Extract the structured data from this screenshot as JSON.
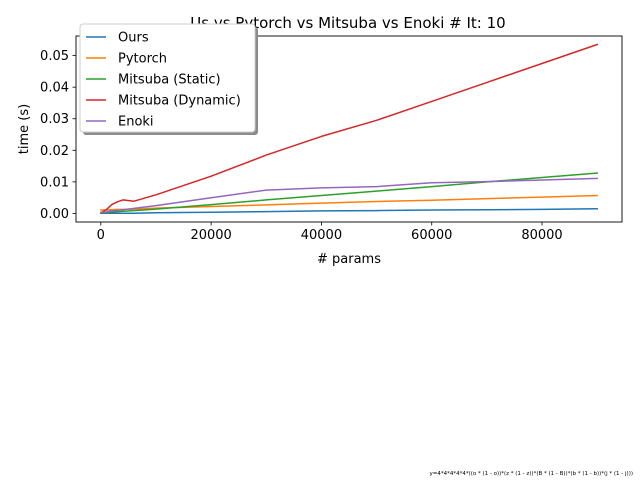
{
  "chart_data": {
    "type": "line",
    "title": "Us vs Pytorch vs Mitsuba vs Enoki # It: 10",
    "xlabel": "# params",
    "ylabel": "time (s)",
    "xlim": [
      -4500,
      94500
    ],
    "ylim": [
      -0.0027,
      0.0562
    ],
    "xticks": [
      0,
      20000,
      40000,
      60000,
      80000
    ],
    "yticks": [
      0.0,
      0.01,
      0.02,
      0.03,
      0.04,
      0.05
    ],
    "ytick_labels": [
      "0.00",
      "0.01",
      "0.02",
      "0.03",
      "0.04",
      "0.05"
    ],
    "grid": false,
    "legend_position": "upper-left",
    "footnote": "y=4*4*4*4*4*((o * (1 - o))*(z * (1 - z))*(B * (1 - B))*(b * (1 - b))*(j * (1 - j)))",
    "series": [
      {
        "name": "Ours",
        "color": "#1f77b4",
        "x": [
          0,
          1000,
          2000,
          3000,
          4000,
          6000,
          10000,
          20000,
          30000,
          40000,
          50000,
          60000,
          70000,
          80000,
          90000
        ],
        "y": [
          0.0001,
          0.0001,
          0.0001,
          0.0001,
          0.0001,
          0.0001,
          0.0002,
          0.0004,
          0.0006,
          0.0008,
          0.0009,
          0.0011,
          0.0012,
          0.0013,
          0.0015
        ]
      },
      {
        "name": "Pytorch",
        "color": "#ff7f0e",
        "x": [
          0,
          1000,
          2000,
          3000,
          4000,
          6000,
          10000,
          20000,
          30000,
          40000,
          50000,
          60000,
          70000,
          80000,
          90000
        ],
        "y": [
          0.0011,
          0.0011,
          0.0012,
          0.0013,
          0.0013,
          0.0014,
          0.0017,
          0.0022,
          0.0027,
          0.0033,
          0.0038,
          0.0042,
          0.0047,
          0.0052,
          0.0057
        ]
      },
      {
        "name": "Mitsuba (Static)",
        "color": "#2ca02c",
        "x": [
          0,
          1000,
          2000,
          3000,
          4000,
          6000,
          10000,
          20000,
          30000,
          40000,
          50000,
          60000,
          70000,
          80000,
          90000
        ],
        "y": [
          0.0002,
          0.0003,
          0.0005,
          0.0006,
          0.0007,
          0.0009,
          0.0014,
          0.0028,
          0.0043,
          0.0057,
          0.0071,
          0.0085,
          0.01,
          0.0114,
          0.0128
        ]
      },
      {
        "name": "Mitsuba (Dynamic)",
        "color": "#d62728",
        "x": [
          0,
          1000,
          2000,
          3000,
          4000,
          6000,
          10000,
          20000,
          30000,
          40000,
          50000,
          60000,
          70000,
          80000,
          90000
        ],
        "y": [
          0.0002,
          0.0012,
          0.0028,
          0.0037,
          0.0043,
          0.0039,
          0.0059,
          0.0118,
          0.0185,
          0.0244,
          0.0295,
          0.0355,
          0.0415,
          0.0475,
          0.0535
        ]
      },
      {
        "name": "Enoki",
        "color": "#9467bd",
        "x": [
          0,
          1000,
          2000,
          3000,
          4000,
          6000,
          10000,
          20000,
          30000,
          40000,
          50000,
          60000,
          70000,
          80000,
          90000
        ],
        "y": [
          0.0003,
          0.0005,
          0.0008,
          0.001,
          0.0012,
          0.0016,
          0.0025,
          0.005,
          0.0074,
          0.0081,
          0.0085,
          0.0097,
          0.0101,
          0.0106,
          0.0111
        ]
      }
    ]
  }
}
